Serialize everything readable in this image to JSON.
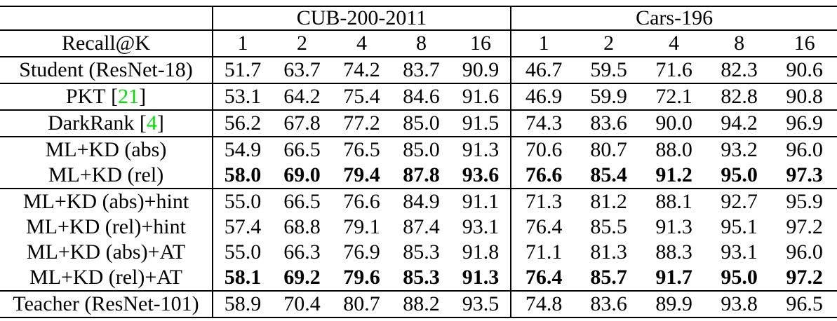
{
  "colors": {
    "background": "#ffffff",
    "border": "#000000",
    "text": "#000000",
    "citation": "#00e000"
  },
  "table": {
    "groups": [
      {
        "label": "CUB-200-2011"
      },
      {
        "label": "Cars-196"
      }
    ],
    "recall_header": "Recall@K",
    "k_headers": [
      "1",
      "2",
      "4",
      "8",
      "16",
      "1",
      "2",
      "4",
      "8",
      "16"
    ],
    "citation_brackets": {
      "open": "[",
      "close": "]"
    },
    "rows": [
      {
        "method": "Student (ResNet-18)",
        "cite": null,
        "bold_values": false,
        "rule_below": true,
        "values": [
          "51.7",
          "63.7",
          "74.2",
          "83.7",
          "90.9",
          "46.7",
          "59.5",
          "71.6",
          "82.3",
          "90.6"
        ]
      },
      {
        "method": "PKT",
        "cite": "21",
        "bold_values": false,
        "rule_below": true,
        "values": [
          "53.1",
          "64.2",
          "75.4",
          "84.6",
          "91.6",
          "46.9",
          "59.9",
          "72.1",
          "82.8",
          "90.8"
        ]
      },
      {
        "method": "DarkRank",
        "cite": "4",
        "bold_values": false,
        "rule_below": true,
        "values": [
          "56.2",
          "67.8",
          "77.2",
          "85.0",
          "91.5",
          "74.3",
          "83.6",
          "90.0",
          "94.2",
          "96.9"
        ]
      },
      {
        "method": "ML+KD (abs)",
        "cite": null,
        "bold_values": false,
        "rule_below": false,
        "values": [
          "54.9",
          "66.5",
          "76.5",
          "85.0",
          "91.3",
          "70.6",
          "80.7",
          "88.0",
          "93.2",
          "96.0"
        ]
      },
      {
        "method": "ML+KD (rel)",
        "cite": null,
        "bold_values": true,
        "rule_below": true,
        "values": [
          "58.0",
          "69.0",
          "79.4",
          "87.8",
          "93.6",
          "76.6",
          "85.4",
          "91.2",
          "95.0",
          "97.3"
        ]
      },
      {
        "method": "ML+KD (abs)+hint",
        "cite": null,
        "bold_values": false,
        "rule_below": false,
        "values": [
          "55.0",
          "66.5",
          "76.6",
          "84.9",
          "91.1",
          "71.3",
          "81.2",
          "88.1",
          "92.7",
          "95.9"
        ]
      },
      {
        "method": "ML+KD (rel)+hint",
        "cite": null,
        "bold_values": false,
        "rule_below": false,
        "values": [
          "57.4",
          "68.8",
          "79.1",
          "87.4",
          "93.1",
          "76.4",
          "85.5",
          "91.3",
          "95.1",
          "97.2"
        ]
      },
      {
        "method": "ML+KD (abs)+AT",
        "cite": null,
        "bold_values": false,
        "rule_below": false,
        "values": [
          "55.0",
          "66.3",
          "76.9",
          "85.3",
          "91.8",
          "71.1",
          "81.3",
          "88.3",
          "93.1",
          "96.0"
        ]
      },
      {
        "method": "ML+KD (rel)+AT",
        "cite": null,
        "bold_values": true,
        "rule_below": true,
        "values": [
          "58.1",
          "69.2",
          "79.6",
          "85.3",
          "91.3",
          "76.4",
          "85.7",
          "91.7",
          "95.0",
          "97.2"
        ]
      },
      {
        "method": "Teacher (ResNet-101)",
        "cite": null,
        "bold_values": false,
        "rule_below": false,
        "values": [
          "58.9",
          "70.4",
          "80.7",
          "88.2",
          "93.5",
          "74.8",
          "83.6",
          "89.9",
          "93.8",
          "96.5"
        ]
      }
    ]
  }
}
